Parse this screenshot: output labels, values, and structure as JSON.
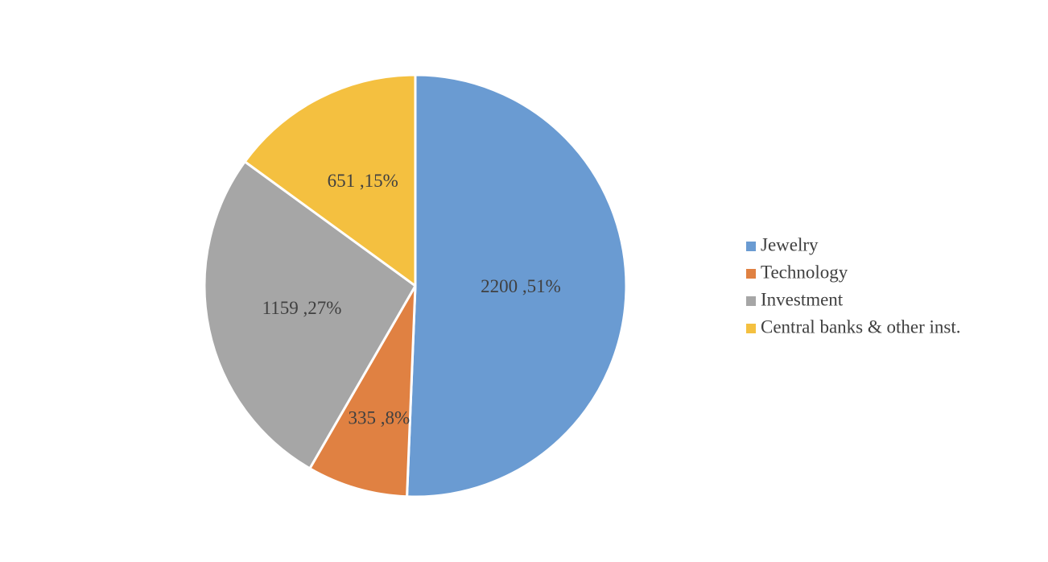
{
  "chart_data": {
    "type": "pie",
    "title": "",
    "slices": [
      {
        "label": "Jewelry",
        "value": 2200,
        "percent": 51,
        "data_label": "2200 ,51%",
        "color": "#6a9bd2"
      },
      {
        "label": "Technology",
        "value": 335,
        "percent": 8,
        "data_label": "335 ,8%",
        "color": "#e08142"
      },
      {
        "label": "Investment",
        "value": 1159,
        "percent": 27,
        "data_label": "1159 ,27%",
        "color": "#a6a6a6"
      },
      {
        "label": "Central banks & other inst.",
        "value": 651,
        "percent": 15,
        "data_label": "651 ,15%",
        "color": "#f4c040"
      }
    ],
    "start_angle": "12 o'clock",
    "direction": "clockwise",
    "legend_position": "right"
  }
}
